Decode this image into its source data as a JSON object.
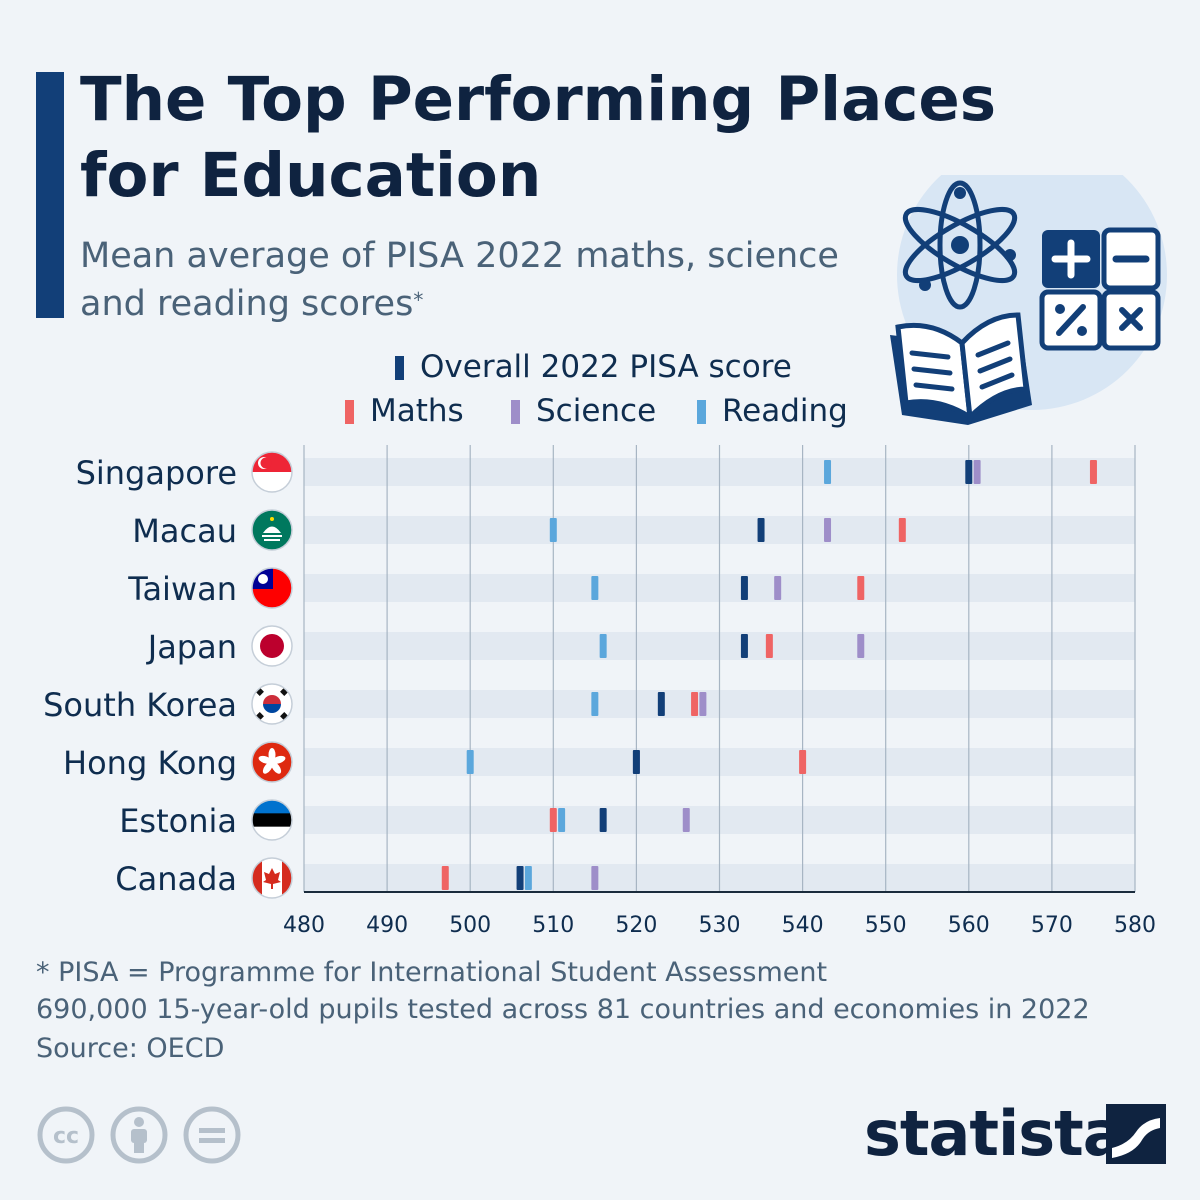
{
  "header": {
    "title": "The Top Performing Places for Education",
    "subtitle": "Mean average of PISA 2022 maths, science and reading scores",
    "subtitle_mark": "*"
  },
  "legend": {
    "overall": "Overall 2022 PISA score",
    "maths": "Maths",
    "science": "Science",
    "reading": "Reading"
  },
  "colors": {
    "overall": "#123f78",
    "maths": "#ef6464",
    "science": "#9e8ec9",
    "reading": "#5ba7dc",
    "band": "#e2e9f1",
    "grid": "#a7b5c3",
    "title": "#0f2340",
    "accent": "#123f78"
  },
  "chart_data": {
    "type": "dot-strip",
    "title": "The Top Performing Places for Education",
    "subtitle": "Mean average of PISA 2022 maths, science and reading scores",
    "xlim": [
      480,
      580
    ],
    "xticks": [
      "480",
      "490",
      "500",
      "510",
      "520",
      "530",
      "540",
      "550",
      "560",
      "570",
      "580"
    ],
    "grid": "vertical",
    "legend_position": "top",
    "categories": [
      "Singapore",
      "Macau",
      "Taiwan",
      "Japan",
      "South Korea",
      "Hong Kong",
      "Estonia",
      "Canada"
    ],
    "flags": [
      "singapore-flag",
      "macau-flag",
      "taiwan-flag",
      "japan-flag",
      "south-korea-flag",
      "hong-kong-flag",
      "estonia-flag",
      "canada-flag"
    ],
    "series": [
      {
        "name": "Overall 2022 PISA score",
        "key": "overall",
        "values": [
          560,
          535,
          533,
          533,
          523,
          520,
          516,
          506
        ]
      },
      {
        "name": "Maths",
        "key": "maths",
        "values": [
          575,
          552,
          547,
          536,
          527,
          540,
          510,
          497
        ]
      },
      {
        "name": "Science",
        "key": "science",
        "values": [
          561,
          543,
          537,
          547,
          528,
          520,
          526,
          515
        ]
      },
      {
        "name": "Reading",
        "key": "reading",
        "values": [
          543,
          510,
          515,
          516,
          515,
          500,
          511,
          507
        ]
      }
    ]
  },
  "footer": {
    "note_line1": "* PISA = Programme for International Student Assessment",
    "note_line2": "690,000 15-year-old pupils tested across 81 countries and economies in 2022",
    "source": "Source: OECD",
    "brand": "statista"
  },
  "icons": {
    "illustration": [
      "atom-icon",
      "calculator-icon",
      "open-book-icon"
    ],
    "license": [
      "cc-icon",
      "attribution-icon",
      "no-derivatives-icon"
    ],
    "brand_logo": "statista-logo-icon"
  }
}
